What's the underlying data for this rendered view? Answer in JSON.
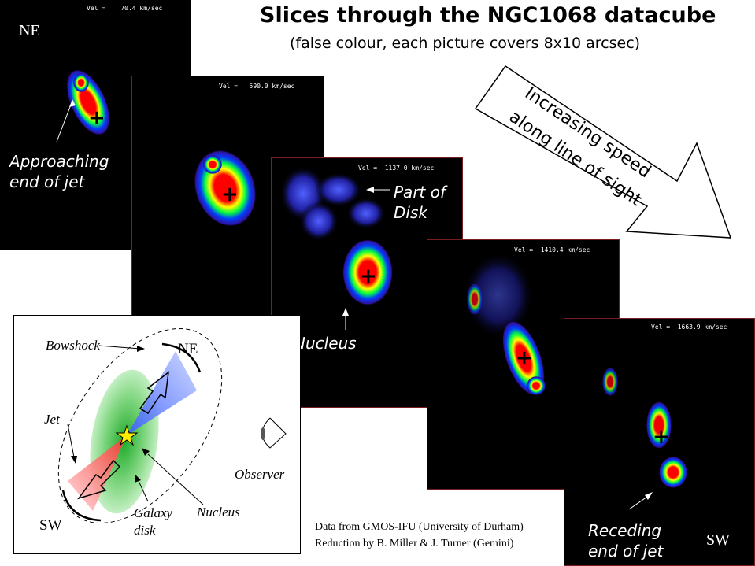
{
  "title": "Slices through the NGC1068 datacube",
  "subtitle": "(false colour, each picture covers 8x10 arcsec)",
  "arrow": {
    "line1": "Increasing speed",
    "line2": "along line of sight"
  },
  "panels": [
    {
      "vel": "Vel =    70.4 km/sec",
      "corner_label": "NE",
      "caption": "Approaching\nend of jet"
    },
    {
      "vel": "Vel =   590.0 km/sec"
    },
    {
      "vel": "Vel =  1137.0 km/sec",
      "caption_disk": "Part of\nDisk",
      "caption_nucleus": "Nucleus"
    },
    {
      "vel": "Vel =  1410.4 km/sec"
    },
    {
      "vel": "Vel =  1663.9 km/sec",
      "corner_label": "SW",
      "caption": "Receding\nend of jet"
    }
  ],
  "credits": {
    "line1": "Data from GMOS-IFU (University of Durham)",
    "line2": "Reduction by B. Miller & J. Turner (Gemini)"
  },
  "diagram": {
    "bowshock": "Bowshock",
    "ne": "NE",
    "sw": "SW",
    "jet": "Jet",
    "observer": "Observer",
    "galaxy_disk": "Galaxy\ndisk",
    "nucleus": "Nucleus"
  },
  "colors": {
    "panel_border": "#7a1f1f",
    "blue_cone": "#3a5cff",
    "red_cone": "#ff3030",
    "disk_green": "#1faa2a",
    "star": "#ffee00"
  }
}
